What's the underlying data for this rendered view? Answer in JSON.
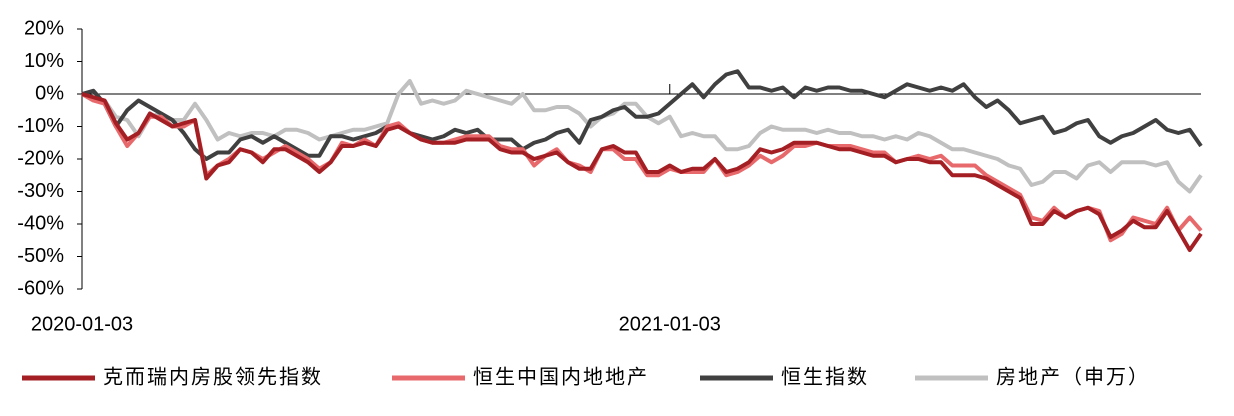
{
  "chart_data": {
    "type": "line",
    "categories": [
      "2020-01-03",
      null,
      null,
      null,
      null,
      null,
      null,
      null,
      null,
      null,
      null,
      null,
      null,
      null,
      null,
      null,
      null,
      null,
      null,
      null,
      null,
      null,
      null,
      null,
      null,
      null,
      null,
      null,
      null,
      null,
      null,
      null,
      null,
      null,
      null,
      null,
      null,
      null,
      null,
      null,
      null,
      null,
      null,
      null,
      null,
      null,
      null,
      null,
      null,
      null,
      null,
      null,
      "2021-01-03",
      null,
      null,
      null,
      null,
      null,
      null,
      null,
      null,
      null,
      null,
      null,
      null,
      null,
      null,
      null,
      null,
      null,
      null,
      null,
      null,
      null,
      null,
      null,
      null,
      null,
      null,
      null,
      null,
      null,
      null,
      null,
      null,
      null,
      null,
      null,
      null,
      null,
      null,
      null,
      null,
      null,
      null,
      null,
      null,
      null,
      null,
      null
    ],
    "series": [
      {
        "name": "克而瑞内房股领先指数",
        "color": "#a31f24",
        "values": [
          0,
          -1,
          -2,
          -9,
          -14,
          -12,
          -6,
          -8,
          -10,
          -9,
          -8,
          -26,
          -22,
          -21,
          -17,
          -18,
          -21,
          -17,
          -17,
          -19,
          -21,
          -24,
          -21,
          -16,
          -16,
          -15,
          -16,
          -11,
          -10,
          -12,
          -14,
          -15,
          -15,
          -15,
          -14,
          -14,
          -14,
          -17,
          -18,
          -18,
          -20,
          -19,
          -18,
          -21,
          -23,
          -23,
          -17,
          -16,
          -18,
          -18,
          -24,
          -24,
          -22,
          -24,
          -23,
          -23,
          -20,
          -24,
          -23,
          -21,
          -17,
          -18,
          -17,
          -15,
          -15,
          -15,
          -16,
          -17,
          -17,
          -18,
          -19,
          -19,
          -21,
          -20,
          -20,
          -21,
          -21,
          -25,
          -25,
          -25,
          -26,
          -28,
          -30,
          -32,
          -40,
          -40,
          -36,
          -38,
          -36,
          -35,
          -37,
          -44,
          -42,
          -39,
          -41,
          -41,
          -36,
          -42,
          -48,
          -43
        ]
      },
      {
        "name": "恒生中国内地地产",
        "color": "#e8696b",
        "values": [
          0,
          -2,
          -3,
          -10,
          -16,
          -12,
          -7,
          -7,
          -10,
          -10,
          -8,
          -25,
          -22,
          -20,
          -17,
          -18,
          -20,
          -18,
          -16,
          -18,
          -20,
          -23,
          -21,
          -15,
          -16,
          -14,
          -16,
          -10,
          -9,
          -12,
          -14,
          -15,
          -15,
          -14,
          -13,
          -13,
          -13,
          -16,
          -17,
          -17,
          -22,
          -19,
          -17,
          -21,
          -22,
          -24,
          -17,
          -17,
          -20,
          -20,
          -25,
          -25,
          -23,
          -24,
          -24,
          -24,
          -20,
          -25,
          -24,
          -22,
          -19,
          -21,
          -19,
          -16,
          -16,
          -15,
          -16,
          -16,
          -16,
          -17,
          -18,
          -18,
          -21,
          -20,
          -19,
          -20,
          -19,
          -22,
          -22,
          -22,
          -25,
          -27,
          -29,
          -31,
          -38,
          -39,
          -35,
          -38,
          -36,
          -35,
          -36,
          -45,
          -43,
          -38,
          -39,
          -40,
          -35,
          -42,
          -38,
          -42
        ]
      },
      {
        "name": "恒生指数",
        "color": "#404040",
        "values": [
          0,
          1,
          -3,
          -10,
          -5,
          -2,
          -4,
          -6,
          -8,
          -12,
          -17,
          -20,
          -18,
          -18,
          -14,
          -13,
          -15,
          -13,
          -15,
          -17,
          -19,
          -19,
          -13,
          -13,
          -14,
          -13,
          -12,
          -10,
          -10,
          -12,
          -13,
          -14,
          -13,
          -11,
          -12,
          -11,
          -14,
          -14,
          -14,
          -17,
          -15,
          -14,
          -12,
          -11,
          -15,
          -8,
          -7,
          -5,
          -4,
          -7,
          -7,
          -6,
          -3,
          0,
          3,
          -1,
          3,
          6,
          7,
          2,
          2,
          1,
          2,
          -1,
          2,
          1,
          2,
          2,
          1,
          1,
          0,
          -1,
          1,
          3,
          2,
          1,
          2,
          1,
          3,
          -1,
          -4,
          -2,
          -5,
          -9,
          -8,
          -7,
          -12,
          -11,
          -9,
          -8,
          -13,
          -15,
          -13,
          -12,
          -10,
          -8,
          -11,
          -12,
          -11,
          -16
        ]
      },
      {
        "name": "房地产（申万）",
        "color": "#c0c0c0",
        "values": [
          0,
          -1,
          -2,
          -7,
          -8,
          -13,
          -7,
          -6,
          -8,
          -8,
          -3,
          -8,
          -14,
          -12,
          -13,
          -12,
          -12,
          -13,
          -11,
          -11,
          -12,
          -14,
          -13,
          -12,
          -11,
          -11,
          -10,
          -9,
          0,
          4,
          -3,
          -2,
          -3,
          -2,
          1,
          0,
          -1,
          -2,
          -3,
          0,
          -5,
          -5,
          -4,
          -4,
          -6,
          -10,
          -7,
          -6,
          -3,
          -3,
          -7,
          -9,
          -7,
          -13,
          -12,
          -13,
          -13,
          -17,
          -17,
          -16,
          -12,
          -10,
          -11,
          -11,
          -11,
          -12,
          -11,
          -12,
          -12,
          -13,
          -13,
          -14,
          -13,
          -14,
          -12,
          -13,
          -15,
          -17,
          -17,
          -18,
          -19,
          -20,
          -22,
          -23,
          -28,
          -27,
          -24,
          -24,
          -26,
          -22,
          -21,
          -24,
          -21,
          -21,
          -21,
          -22,
          -21,
          -27,
          -30,
          -25
        ]
      }
    ],
    "ylim": [
      -60,
      20
    ],
    "yticks": [
      {
        "value": 20,
        "label": "20%"
      },
      {
        "value": 10,
        "label": "10%"
      },
      {
        "value": 0,
        "label": "0%"
      },
      {
        "value": -10,
        "label": "-10%"
      },
      {
        "value": -20,
        "label": "-20%"
      },
      {
        "value": -30,
        "label": "-30%"
      },
      {
        "value": -40,
        "label": "-40%"
      },
      {
        "value": -50,
        "label": "-50%"
      },
      {
        "value": -60,
        "label": "-60%"
      }
    ]
  }
}
